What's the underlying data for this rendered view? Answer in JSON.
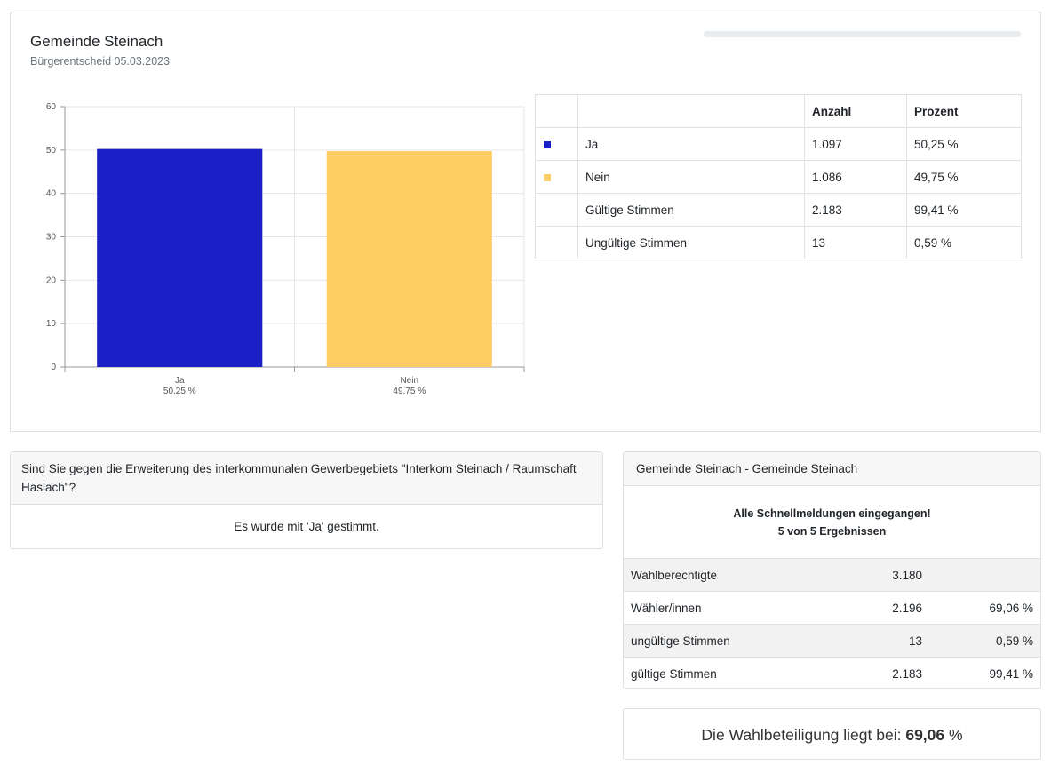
{
  "header": {
    "title": "Gemeinde Steinach",
    "subtitle": "Bürgerentscheid 05.03.2023"
  },
  "progress": {
    "value_percent": 0
  },
  "chart_data": {
    "type": "bar",
    "categories": [
      "Ja",
      "Nein"
    ],
    "category_sublabels": [
      "50.25 %",
      "49.75 %"
    ],
    "values": [
      50.25,
      49.75
    ],
    "colors": [
      "#1a20c6",
      "#fdcd64"
    ],
    "ylim": [
      0,
      60
    ],
    "yticks": [
      0,
      10,
      20,
      30,
      40,
      50,
      60
    ],
    "grid": true
  },
  "results_table": {
    "headers": [
      "",
      "",
      "Anzahl",
      "Prozent"
    ],
    "rows": [
      {
        "swatch": "#1a20c6",
        "name": "Ja",
        "count": "1.097",
        "percent": "50,25 %"
      },
      {
        "swatch": "#fdcd64",
        "name": "Nein",
        "count": "1.086",
        "percent": "49,75 %"
      },
      {
        "swatch": "",
        "name": "Gültige Stimmen",
        "count": "2.183",
        "percent": "99,41 %"
      },
      {
        "swatch": "",
        "name": "Ungültige Stimmen",
        "count": "13",
        "percent": "0,59 %"
      }
    ]
  },
  "question": {
    "text": "Sind Sie gegen die Erweiterung des interkommunalen Gewerbegebiets \"Interkom Steinach / Raumschaft Haslach\"?",
    "result": "Es wurde mit 'Ja' gestimmt."
  },
  "summary": {
    "header": "Gemeinde Steinach - Gemeinde Steinach",
    "status_line1": "Alle Schnellmeldungen eingegangen!",
    "status_line2": "5 von 5 Ergebnissen",
    "rows": [
      {
        "label": "Wahlberechtigte",
        "value": "3.180",
        "percent": ""
      },
      {
        "label": "Wähler/innen",
        "value": "2.196",
        "percent": "69,06 %"
      },
      {
        "label": "ungültige Stimmen",
        "value": "13",
        "percent": "0,59 %"
      },
      {
        "label": "gültige Stimmen",
        "value": "2.183",
        "percent": "99,41 %"
      }
    ]
  },
  "turnout": {
    "prefix": "Die Wahlbeteiligung liegt bei:",
    "value": "69,06",
    "suffix": "%"
  }
}
